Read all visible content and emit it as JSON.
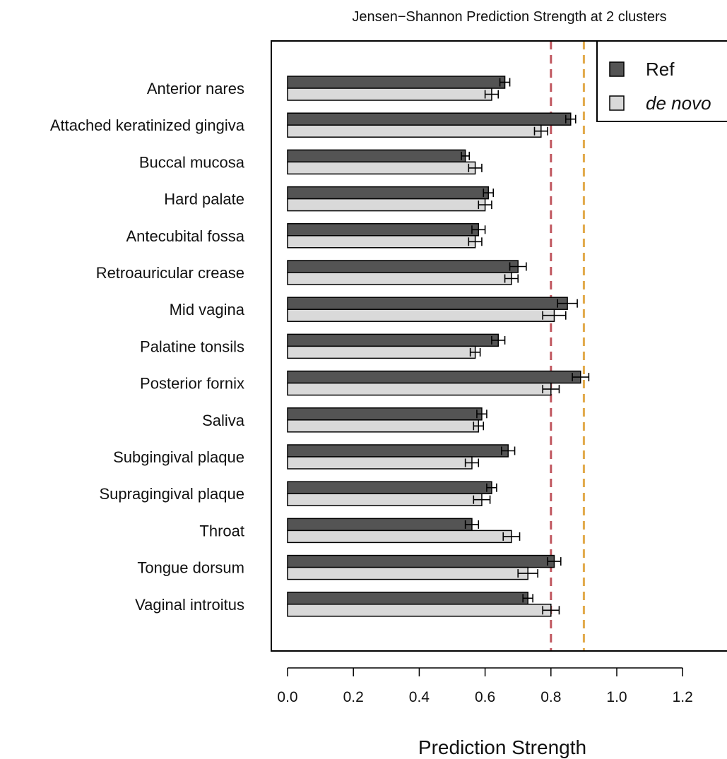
{
  "chart_data": {
    "type": "bar",
    "orientation": "horizontal",
    "title": "Jensen−Shannon Prediction Strength at 2 clusters",
    "xlabel": "Prediction Strength",
    "ylabel": "",
    "xlim": [
      0,
      1.3
    ],
    "xticks": [
      0.0,
      0.2,
      0.4,
      0.6,
      0.8,
      1.0,
      1.2
    ],
    "xtick_labels": [
      "0.0",
      "0.2",
      "0.4",
      "0.6",
      "0.8",
      "1.0",
      "1.2"
    ],
    "grid": false,
    "legend_position": "top-right",
    "categories": [
      "Anterior nares",
      "Attached keratinized gingiva",
      "Buccal mucosa",
      "Hard palate",
      "Antecubital fossa",
      "Retroauricular crease",
      "Mid vagina",
      "Palatine tonsils",
      "Posterior fornix",
      "Saliva",
      "Subgingival plaque",
      "Supragingival plaque",
      "Throat",
      "Tongue dorsum",
      "Vaginal introitus"
    ],
    "series": [
      {
        "name": "Ref",
        "color": "#545454",
        "values": [
          0.66,
          0.86,
          0.54,
          0.61,
          0.58,
          0.7,
          0.85,
          0.64,
          0.89,
          0.59,
          0.67,
          0.62,
          0.56,
          0.81,
          0.73
        ],
        "error": [
          0.015,
          0.015,
          0.012,
          0.015,
          0.02,
          0.025,
          0.03,
          0.02,
          0.025,
          0.015,
          0.02,
          0.015,
          0.02,
          0.02,
          0.015
        ]
      },
      {
        "name": "de novo",
        "color": "#d9d9d9",
        "values": [
          0.62,
          0.77,
          0.57,
          0.6,
          0.57,
          0.68,
          0.81,
          0.57,
          0.8,
          0.58,
          0.56,
          0.59,
          0.68,
          0.73,
          0.8
        ],
        "error": [
          0.02,
          0.02,
          0.02,
          0.02,
          0.02,
          0.02,
          0.035,
          0.015,
          0.025,
          0.015,
          0.02,
          0.025,
          0.025,
          0.03,
          0.025
        ]
      }
    ],
    "reference_lines": [
      {
        "value": 0.8,
        "color": "#c0575f",
        "style": "dashed"
      },
      {
        "value": 0.9,
        "color": "#e2a94a",
        "style": "dashed"
      }
    ]
  }
}
